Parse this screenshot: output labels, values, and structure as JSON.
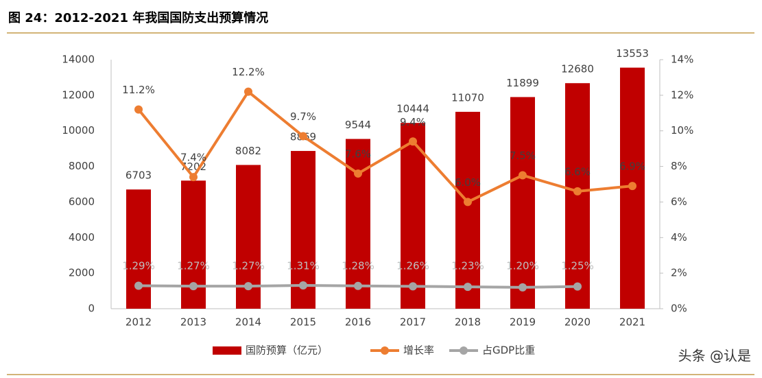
{
  "title": "图 24：2012-2021 年我国国防支出预算情况",
  "watermark": "头条 @认是",
  "chart_data": {
    "type": "bar-line",
    "categories": [
      "2012",
      "2013",
      "2014",
      "2015",
      "2016",
      "2017",
      "2018",
      "2019",
      "2020",
      "2021"
    ],
    "series": [
      {
        "name": "国防预算（亿元）",
        "type": "bar",
        "color": "#c00000",
        "values": [
          6703,
          7202,
          8082,
          8869,
          9544,
          10444,
          11070,
          11899,
          12680,
          13553
        ]
      },
      {
        "name": "增长率",
        "type": "line",
        "axis": "y2",
        "color": "#ed7d31",
        "values": [
          11.2,
          7.4,
          12.2,
          9.7,
          7.6,
          9.4,
          6.0,
          7.5,
          6.6,
          6.9
        ],
        "value_labels": [
          "11.2%",
          "7.4%",
          "12.2%",
          "9.7%",
          "7.6%",
          "9.4%",
          "6.0%",
          "7.5%",
          "6.6%",
          "6.9%"
        ]
      },
      {
        "name": "占GDP比重",
        "type": "line",
        "axis": "y2",
        "color": "#a5a5a5",
        "values": [
          1.29,
          1.27,
          1.27,
          1.31,
          1.28,
          1.26,
          1.23,
          1.2,
          1.25,
          null
        ],
        "value_labels": [
          "1.29%",
          "1.27%",
          "1.27%",
          "1.31%",
          "1.28%",
          "1.26%",
          "1.23%",
          "1.20%",
          "1.25%",
          null
        ]
      }
    ],
    "ylim": [
      0,
      14000
    ],
    "yticks": [
      0,
      2000,
      4000,
      6000,
      8000,
      10000,
      12000,
      14000
    ],
    "y2lim": [
      0,
      14
    ],
    "y2ticks": [
      {
        "value": 0,
        "label": "0%"
      },
      {
        "value": 2,
        "label": "2%"
      },
      {
        "value": 4,
        "label": "4%"
      },
      {
        "value": 6,
        "label": "6%"
      },
      {
        "value": 8,
        "label": "8%"
      },
      {
        "value": 10,
        "label": "10%"
      },
      {
        "value": 12,
        "label": "12%"
      },
      {
        "value": 14,
        "label": "14%"
      }
    ],
    "legend": "bottom"
  }
}
